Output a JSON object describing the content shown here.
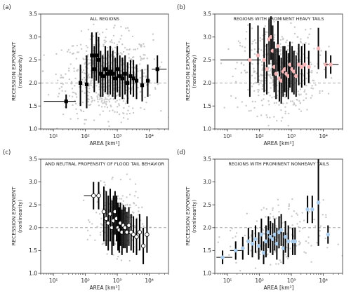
{
  "chart_data": [
    {
      "type": "scatter",
      "panel_label": "(a)",
      "title": "ALL REGIONS",
      "xlabel": "AREA [km²]",
      "ylabel": "RECESSION EXPONENT",
      "ylabel_sub": "(nonlinearity)",
      "xscale": "log",
      "xlim": [
        4,
        40000
      ],
      "ylim": [
        1.0,
        3.5
      ],
      "xticks": [
        "10¹",
        "10²",
        "10³",
        "10⁴"
      ],
      "yticks": [
        "1.0",
        "1.5",
        "2.0",
        "2.5",
        "3.0",
        "3.5"
      ],
      "reference_line_y": 2.0,
      "marker": "square",
      "marker_color": "#000000",
      "points": [
        {
          "x": 25,
          "y": 1.6,
          "xlo": 5,
          "xhi": 50,
          "ylo": 1.45,
          "yhi": 1.75
        },
        {
          "x": 70,
          "y": 2.0,
          "ylo": 1.5,
          "yhi": 2.4
        },
        {
          "x": 110,
          "y": 1.97,
          "ylo": 1.45,
          "yhi": 2.6
        },
        {
          "x": 160,
          "y": 2.6,
          "ylo": 2.1,
          "yhi": 3.1
        },
        {
          "x": 190,
          "y": 2.3,
          "ylo": 1.8,
          "yhi": 2.8
        },
        {
          "x": 220,
          "y": 2.6,
          "ylo": 2.05,
          "yhi": 3.1
        },
        {
          "x": 260,
          "y": 2.5,
          "ylo": 2.0,
          "yhi": 3.0
        },
        {
          "x": 300,
          "y": 2.2,
          "ylo": 1.7,
          "yhi": 2.7
        },
        {
          "x": 350,
          "y": 2.15,
          "ylo": 1.7,
          "yhi": 2.6
        },
        {
          "x": 420,
          "y": 2.3,
          "ylo": 1.8,
          "yhi": 2.8
        },
        {
          "x": 500,
          "y": 2.2,
          "ylo": 1.75,
          "yhi": 2.7
        },
        {
          "x": 600,
          "y": 2.25,
          "ylo": 1.75,
          "yhi": 2.8
        },
        {
          "x": 720,
          "y": 2.2,
          "ylo": 1.7,
          "yhi": 2.7
        },
        {
          "x": 860,
          "y": 2.1,
          "ylo": 1.65,
          "yhi": 2.55
        },
        {
          "x": 1000,
          "y": 2.3,
          "ylo": 1.8,
          "yhi": 2.8
        },
        {
          "x": 1200,
          "y": 2.15,
          "ylo": 1.7,
          "yhi": 2.6
        },
        {
          "x": 1450,
          "y": 2.1,
          "ylo": 1.65,
          "yhi": 2.55
        },
        {
          "x": 1750,
          "y": 2.2,
          "ylo": 1.75,
          "yhi": 2.6
        },
        {
          "x": 2100,
          "y": 2.0,
          "ylo": 1.55,
          "yhi": 2.45
        },
        {
          "x": 2600,
          "y": 2.15,
          "ylo": 1.75,
          "yhi": 2.5
        },
        {
          "x": 3200,
          "y": 2.1,
          "ylo": 1.7,
          "yhi": 2.5
        },
        {
          "x": 4000,
          "y": 2.05,
          "ylo": 1.65,
          "yhi": 2.4
        },
        {
          "x": 6000,
          "y": 1.95,
          "ylo": 1.6,
          "yhi": 2.3
        },
        {
          "x": 9000,
          "y": 2.05,
          "ylo": 1.7,
          "yhi": 2.4
        },
        {
          "x": 18000,
          "y": 2.3,
          "xlo": 12000,
          "xhi": 35000,
          "ylo": 2.0,
          "yhi": 2.6
        }
      ]
    },
    {
      "type": "scatter",
      "panel_label": "(b)",
      "title": "REGIONS WITH PROMINENT HEAVY TAILS",
      "xlabel": "AREA [km²]",
      "ylabel": "RECESSION EXPONENT",
      "ylabel_sub": "(nonlinearity)",
      "xscale": "log",
      "xlim": [
        4,
        40000
      ],
      "ylim": [
        1.0,
        3.5
      ],
      "xticks": [
        "10¹",
        "10²",
        "10³",
        "10⁴"
      ],
      "yticks": [
        "1.0",
        "1.5",
        "2.0",
        "2.5",
        "3.0",
        "3.5"
      ],
      "reference_line_y": 2.0,
      "marker": "circle",
      "marker_color": "#f4b6b6",
      "points": [
        {
          "x": 50,
          "y": 2.5,
          "xlo": 6,
          "xhi": 110,
          "ylo": 1.7,
          "yhi": 3.3
        },
        {
          "x": 90,
          "y": 2.6,
          "ylo": 2.0,
          "yhi": 3.25
        },
        {
          "x": 140,
          "y": 2.5,
          "ylo": 1.8,
          "yhi": 3.2
        },
        {
          "x": 170,
          "y": 2.3,
          "ylo": 1.75,
          "yhi": 2.85
        },
        {
          "x": 200,
          "y": 2.95,
          "ylo": 2.4,
          "yhi": 3.4
        },
        {
          "x": 230,
          "y": 3.0,
          "ylo": 2.5,
          "yhi": 3.45
        },
        {
          "x": 260,
          "y": 2.7,
          "ylo": 2.15,
          "yhi": 3.25
        },
        {
          "x": 290,
          "y": 2.35,
          "ylo": 1.8,
          "yhi": 2.9
        },
        {
          "x": 330,
          "y": 2.2,
          "ylo": 1.65,
          "yhi": 2.75
        },
        {
          "x": 380,
          "y": 2.8,
          "ylo": 2.25,
          "yhi": 3.35
        },
        {
          "x": 420,
          "y": 2.1,
          "ylo": 1.6,
          "yhi": 2.6
        },
        {
          "x": 480,
          "y": 2.05,
          "ylo": 1.55,
          "yhi": 2.55
        },
        {
          "x": 550,
          "y": 2.25,
          "ylo": 1.7,
          "yhi": 2.8
        },
        {
          "x": 620,
          "y": 2.3,
          "ylo": 1.8,
          "yhi": 2.8
        },
        {
          "x": 700,
          "y": 2.2,
          "ylo": 1.7,
          "yhi": 2.7
        },
        {
          "x": 800,
          "y": 2.15,
          "ylo": 1.65,
          "yhi": 2.65
        },
        {
          "x": 900,
          "y": 2.4,
          "ylo": 1.9,
          "yhi": 2.9
        },
        {
          "x": 1050,
          "y": 2.3,
          "ylo": 1.8,
          "yhi": 2.8
        },
        {
          "x": 1200,
          "y": 2.25,
          "ylo": 1.75,
          "yhi": 2.7
        },
        {
          "x": 1400,
          "y": 2.15,
          "ylo": 1.7,
          "yhi": 2.6
        },
        {
          "x": 1700,
          "y": 2.4,
          "ylo": 1.95,
          "yhi": 2.85
        },
        {
          "x": 2100,
          "y": 2.35,
          "ylo": 1.9,
          "yhi": 2.8
        },
        {
          "x": 2600,
          "y": 2.4,
          "ylo": 1.95,
          "yhi": 2.85
        },
        {
          "x": 3500,
          "y": 2.35,
          "ylo": 2.0,
          "yhi": 2.7
        },
        {
          "x": 7000,
          "y": 2.75,
          "ylo": 2.3,
          "yhi": 3.2
        },
        {
          "x": 12000,
          "y": 2.4,
          "ylo": 2.1,
          "yhi": 2.7
        },
        {
          "x": 17000,
          "y": 2.4,
          "xlo": 12000,
          "xhi": 30000,
          "ylo": 2.2,
          "yhi": 2.6
        }
      ]
    },
    {
      "type": "scatter",
      "panel_label": "(c)",
      "title": "AND NEUTRAL PROPENSITY OF FLOOD TAIL BEHAVIOR",
      "xlabel": "AREA [km²]",
      "ylabel": "RECESSION EXPONENT",
      "ylabel_sub": "(nonlinearity)",
      "xscale": "log",
      "xlim": [
        4,
        40000
      ],
      "ylim": [
        1.0,
        3.5
      ],
      "xticks": [
        "10¹",
        "10²",
        "10³",
        "10⁴"
      ],
      "yticks": [
        "1.0",
        "1.5",
        "2.0",
        "2.5",
        "3.0",
        "3.5"
      ],
      "reference_line_y": 2.0,
      "marker": "circle",
      "marker_color": "#ffffff",
      "points": [
        {
          "x": 180,
          "y": 2.7,
          "xlo": 90,
          "xhi": 300,
          "ylo": 2.4,
          "yhi": 3.0
        },
        {
          "x": 260,
          "y": 2.7,
          "ylo": 2.4,
          "yhi": 3.0
        },
        {
          "x": 380,
          "y": 2.35,
          "ylo": 1.7,
          "yhi": 2.9
        },
        {
          "x": 450,
          "y": 2.2,
          "ylo": 1.6,
          "yhi": 2.8
        },
        {
          "x": 520,
          "y": 2.1,
          "ylo": 1.5,
          "yhi": 2.7
        },
        {
          "x": 600,
          "y": 2.3,
          "ylo": 1.7,
          "yhi": 2.85
        },
        {
          "x": 680,
          "y": 2.0,
          "ylo": 1.4,
          "yhi": 2.6
        },
        {
          "x": 760,
          "y": 2.15,
          "ylo": 1.6,
          "yhi": 2.7
        },
        {
          "x": 850,
          "y": 2.35,
          "ylo": 1.85,
          "yhi": 2.8
        },
        {
          "x": 950,
          "y": 2.2,
          "ylo": 1.7,
          "yhi": 2.7
        },
        {
          "x": 1050,
          "y": 2.0,
          "ylo": 1.5,
          "yhi": 2.55
        },
        {
          "x": 1150,
          "y": 1.95,
          "ylo": 1.45,
          "yhi": 2.45
        },
        {
          "x": 1250,
          "y": 2.1,
          "ylo": 1.6,
          "yhi": 2.55
        },
        {
          "x": 1400,
          "y": 1.9,
          "ylo": 1.4,
          "yhi": 2.4
        },
        {
          "x": 1550,
          "y": 2.05,
          "ylo": 1.55,
          "yhi": 2.5
        },
        {
          "x": 1750,
          "y": 2.0,
          "ylo": 1.55,
          "yhi": 2.45
        },
        {
          "x": 2000,
          "y": 1.9,
          "ylo": 1.45,
          "yhi": 2.35
        },
        {
          "x": 2300,
          "y": 2.05,
          "ylo": 1.6,
          "yhi": 2.45
        },
        {
          "x": 2700,
          "y": 1.9,
          "ylo": 1.5,
          "yhi": 2.3
        },
        {
          "x": 3200,
          "y": 1.85,
          "ylo": 1.45,
          "yhi": 2.25
        },
        {
          "x": 4000,
          "y": 1.8,
          "ylo": 1.4,
          "yhi": 2.2
        },
        {
          "x": 5000,
          "y": 1.9,
          "ylo": 1.5,
          "yhi": 2.3
        },
        {
          "x": 6500,
          "y": 1.6,
          "ylo": 1.2,
          "yhi": 2.0
        },
        {
          "x": 8500,
          "y": 1.85,
          "ylo": 1.45,
          "yhi": 2.25
        }
      ]
    },
    {
      "type": "scatter",
      "panel_label": "(d)",
      "title": "REGIONS WITH PROMINENT NONHEAVY TAILS",
      "xlabel": "AREA [km²]",
      "ylabel": "RECESSION EXPONENT",
      "ylabel_sub": "(nonlinearity)",
      "xscale": "log",
      "xlim": [
        4,
        40000
      ],
      "ylim": [
        1.0,
        3.5
      ],
      "xticks": [
        "10¹",
        "10²",
        "10³",
        "10⁴"
      ],
      "yticks": [
        "1.0",
        "1.5",
        "2.0",
        "2.5",
        "3.0",
        "3.5"
      ],
      "reference_line_y": 2.0,
      "marker": "circle",
      "marker_color": "#aacdee",
      "points": [
        {
          "x": 7,
          "y": 1.35,
          "xlo": 4.5,
          "xhi": 14,
          "ylo": 1.2,
          "yhi": 1.5
        },
        {
          "x": 18,
          "y": 1.5,
          "xlo": 12,
          "xhi": 28,
          "ylo": 1.3,
          "yhi": 1.7
        },
        {
          "x": 30,
          "y": 1.55,
          "ylo": 1.3,
          "yhi": 1.8
        },
        {
          "x": 45,
          "y": 1.7,
          "ylo": 1.4,
          "yhi": 2.0
        },
        {
          "x": 60,
          "y": 1.65,
          "ylo": 1.35,
          "yhi": 1.95
        },
        {
          "x": 75,
          "y": 1.75,
          "ylo": 1.45,
          "yhi": 2.05
        },
        {
          "x": 95,
          "y": 1.6,
          "ylo": 1.3,
          "yhi": 1.9
        },
        {
          "x": 115,
          "y": 1.85,
          "ylo": 1.5,
          "yhi": 2.2
        },
        {
          "x": 135,
          "y": 1.45,
          "ylo": 1.2,
          "yhi": 1.7
        },
        {
          "x": 160,
          "y": 1.7,
          "ylo": 1.35,
          "yhi": 2.05
        },
        {
          "x": 190,
          "y": 1.9,
          "ylo": 1.55,
          "yhi": 2.25
        },
        {
          "x": 220,
          "y": 1.8,
          "ylo": 1.45,
          "yhi": 2.15
        },
        {
          "x": 260,
          "y": 1.75,
          "ylo": 1.4,
          "yhi": 2.1
        },
        {
          "x": 300,
          "y": 1.85,
          "ylo": 1.5,
          "yhi": 2.2
        },
        {
          "x": 350,
          "y": 1.65,
          "ylo": 1.3,
          "yhi": 2.0
        },
        {
          "x": 410,
          "y": 1.9,
          "ylo": 1.55,
          "yhi": 2.25
        },
        {
          "x": 480,
          "y": 1.95,
          "ylo": 1.6,
          "yhi": 2.3
        },
        {
          "x": 560,
          "y": 1.55,
          "ylo": 1.2,
          "yhi": 1.9
        },
        {
          "x": 650,
          "y": 1.8,
          "ylo": 1.45,
          "yhi": 2.15
        },
        {
          "x": 800,
          "y": 1.7,
          "ylo": 1.35,
          "yhi": 2.05
        },
        {
          "x": 1100,
          "y": 1.7,
          "ylo": 1.4,
          "yhi": 2.0
        },
        {
          "x": 1300,
          "y": 1.7,
          "ylo": 1.4,
          "yhi": 2.0
        },
        {
          "x": 3200,
          "y": 2.4,
          "ylo": 2.1,
          "yhi": 2.7
        },
        {
          "x": 4500,
          "y": 2.4,
          "ylo": 2.1,
          "yhi": 2.7
        },
        {
          "x": 7000,
          "y": 2.55,
          "ylo": 1.6,
          "yhi": 3.5
        },
        {
          "x": 14000,
          "y": 1.85,
          "ylo": 1.65,
          "yhi": 2.05
        }
      ]
    }
  ]
}
